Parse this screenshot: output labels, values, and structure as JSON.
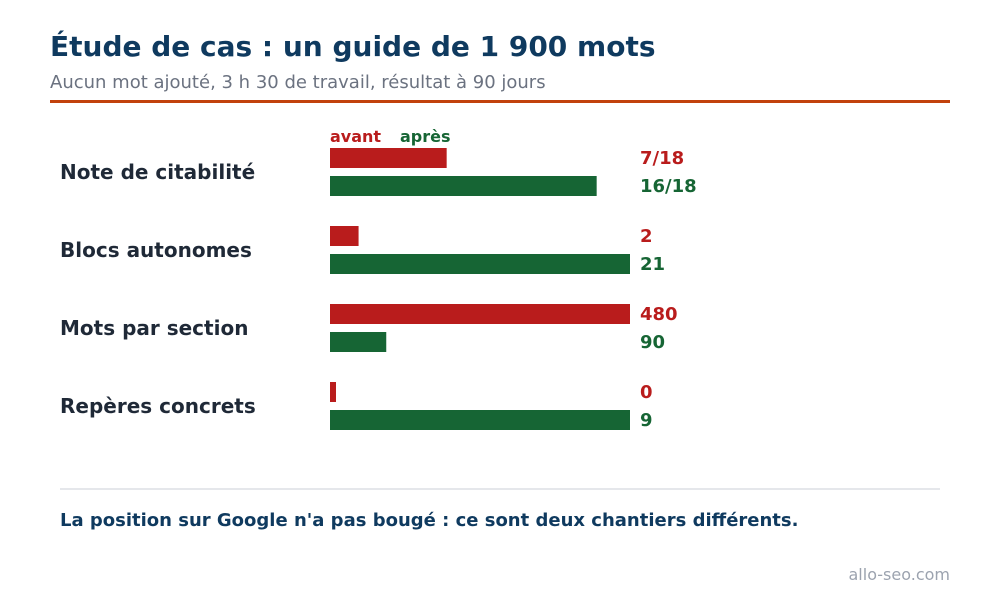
{
  "header": {
    "title": "Étude de cas : un guide de 1 900 mots",
    "subtitle": "Aucun mot ajouté, 3 h 30 de travail, résultat à 90 jours"
  },
  "legend": {
    "before": "avant",
    "after": "après"
  },
  "chart_data": {
    "type": "bar",
    "orientation": "horizontal",
    "categories": [
      "Note de citabilité",
      "Blocs autonomes",
      "Mots par section",
      "Repères concrets"
    ],
    "series": [
      {
        "name": "avant",
        "color": "#b91c1c",
        "values": [
          7,
          2,
          480,
          0
        ],
        "labels": [
          "7/18",
          "2",
          "480",
          "0"
        ]
      },
      {
        "name": "après",
        "color": "#166534",
        "values": [
          16,
          21,
          90,
          9
        ],
        "labels": [
          "16/18",
          "21",
          "90",
          "9"
        ]
      }
    ],
    "category_max": [
      18,
      21,
      480,
      9
    ],
    "scale_note": "each category scaled independently to its own maximum"
  },
  "footer": {
    "conclusion": "La position sur Google n'a pas bougé : ce sont deux chantiers différents.",
    "source": "allo-seo.com"
  },
  "colors": {
    "title": "#0f3a5f",
    "accent_rule": "#c2410c",
    "before": "#b91c1c",
    "after": "#166534",
    "label": "#1f2937"
  }
}
